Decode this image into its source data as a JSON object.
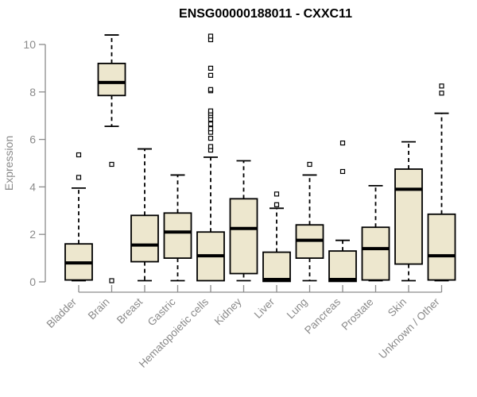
{
  "header": {
    "title": "ENSG00000188011 - CXXC11"
  },
  "colors": {
    "background": "#FFFFFF",
    "title": "#000000",
    "axis": "#8C8C8C",
    "tick_label": "#8A8A8A",
    "box_fill": "#EDE7CE",
    "box_stroke": "#000000",
    "median": "#000000",
    "whisker": "#000000",
    "outlier_stroke": "#000000",
    "outlier_fill": "#FFFFFF"
  },
  "chart_data": {
    "type": "boxplot",
    "title": "ENSG00000188011 - CXXC11",
    "xlabel": "",
    "ylabel": "Expression",
    "ylim": [
      0,
      10
    ],
    "yticks": [
      0,
      2,
      4,
      6,
      8,
      10
    ],
    "grid": false,
    "legend": "none",
    "categories": [
      "Bladder",
      "Brain",
      "Breast",
      "Gastric",
      "Hematopoietic cells",
      "Kidney",
      "Liver",
      "Lung",
      "Pancreas",
      "Prostate",
      "Skin",
      "Unknown / Other"
    ],
    "series": [
      {
        "name": "Bladder",
        "whisker_low": 0.05,
        "q1": 0.08,
        "median": 0.8,
        "q3": 1.6,
        "whisker_high": 3.95,
        "outliers": [
          4.4,
          5.35
        ]
      },
      {
        "name": "Brain",
        "whisker_low": 6.55,
        "q1": 7.85,
        "median": 8.4,
        "q3": 9.2,
        "whisker_high": 10.4,
        "outliers": [
          4.95,
          0.05
        ]
      },
      {
        "name": "Breast",
        "whisker_low": 0.05,
        "q1": 0.85,
        "median": 1.55,
        "q3": 2.8,
        "whisker_high": 5.6,
        "outliers": []
      },
      {
        "name": "Gastric",
        "whisker_low": 0.05,
        "q1": 1.0,
        "median": 2.1,
        "q3": 2.9,
        "whisker_high": 4.5,
        "outliers": []
      },
      {
        "name": "Hematopoietic cells",
        "whisker_low": 0.05,
        "q1": 0.05,
        "median": 1.1,
        "q3": 2.1,
        "whisker_high": 5.25,
        "outliers": [
          5.55,
          5.7,
          6.05,
          6.3,
          6.45,
          6.65,
          6.85,
          7.0,
          7.1,
          7.2,
          8.05,
          8.1,
          8.7,
          9.0,
          10.2,
          10.35
        ]
      },
      {
        "name": "Kidney",
        "whisker_low": 0.05,
        "q1": 0.35,
        "median": 2.25,
        "q3": 3.5,
        "whisker_high": 5.1,
        "outliers": []
      },
      {
        "name": "Liver",
        "whisker_low": 0.02,
        "q1": 0.02,
        "median": 0.1,
        "q3": 1.25,
        "whisker_high": 3.1,
        "outliers": [
          3.25,
          3.7
        ]
      },
      {
        "name": "Lung",
        "whisker_low": 0.05,
        "q1": 1.0,
        "median": 1.75,
        "q3": 2.4,
        "whisker_high": 4.5,
        "outliers": [
          4.95
        ]
      },
      {
        "name": "Pancreas",
        "whisker_low": 0.02,
        "q1": 0.02,
        "median": 0.1,
        "q3": 1.3,
        "whisker_high": 1.75,
        "outliers": [
          4.65,
          5.85
        ]
      },
      {
        "name": "Prostate",
        "whisker_low": 0.05,
        "q1": 0.08,
        "median": 1.4,
        "q3": 2.3,
        "whisker_high": 4.05,
        "outliers": []
      },
      {
        "name": "Skin",
        "whisker_low": 0.05,
        "q1": 0.75,
        "median": 3.9,
        "q3": 4.75,
        "whisker_high": 5.9,
        "outliers": []
      },
      {
        "name": "Unknown / Other",
        "whisker_low": 0.05,
        "q1": 0.08,
        "median": 1.1,
        "q3": 2.85,
        "whisker_high": 7.1,
        "outliers": [
          7.95,
          8.25
        ]
      }
    ]
  }
}
